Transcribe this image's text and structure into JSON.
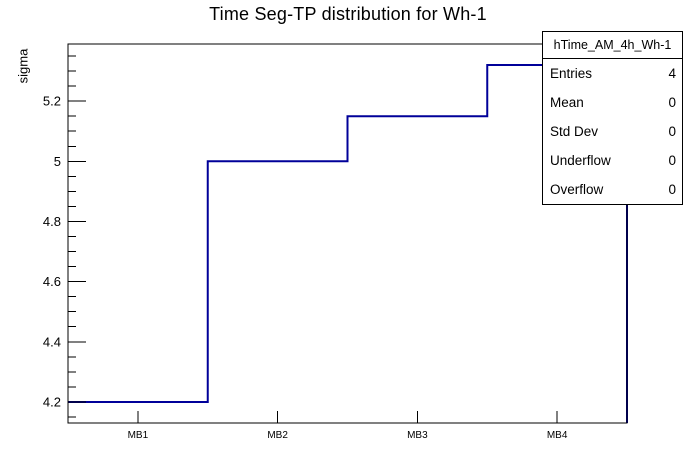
{
  "chart_data": {
    "type": "bar",
    "subtype": "step-histogram",
    "title": "Time Seg-TP distribution for Wh-1",
    "xlabel": "",
    "ylabel": "sigma",
    "categories": [
      "MB1",
      "MB2",
      "MB3",
      "MB4"
    ],
    "values": [
      4.2,
      5.0,
      5.15,
      5.32
    ],
    "ylim": [
      4.13,
      5.39
    ],
    "yticks": [
      4.2,
      4.4,
      4.6,
      4.8,
      5,
      5.2
    ],
    "ytick_labels": [
      "4.2",
      "4.4",
      "4.6",
      "4.8",
      "5",
      "5.2"
    ],
    "y_minor_tick_step": 0.05,
    "grid": false,
    "legend_position": "none",
    "line_color": "#000099",
    "frame_color": "#000000",
    "background_color": "#ffffff"
  },
  "stats_box": {
    "title": "hTime_AM_4h_Wh-1",
    "rows": [
      {
        "label": "Entries",
        "value": "4"
      },
      {
        "label": "Mean",
        "value": "0"
      },
      {
        "label": "Std Dev",
        "value": "0"
      },
      {
        "label": "Underflow",
        "value": "0"
      },
      {
        "label": "Overflow",
        "value": "0"
      }
    ]
  }
}
